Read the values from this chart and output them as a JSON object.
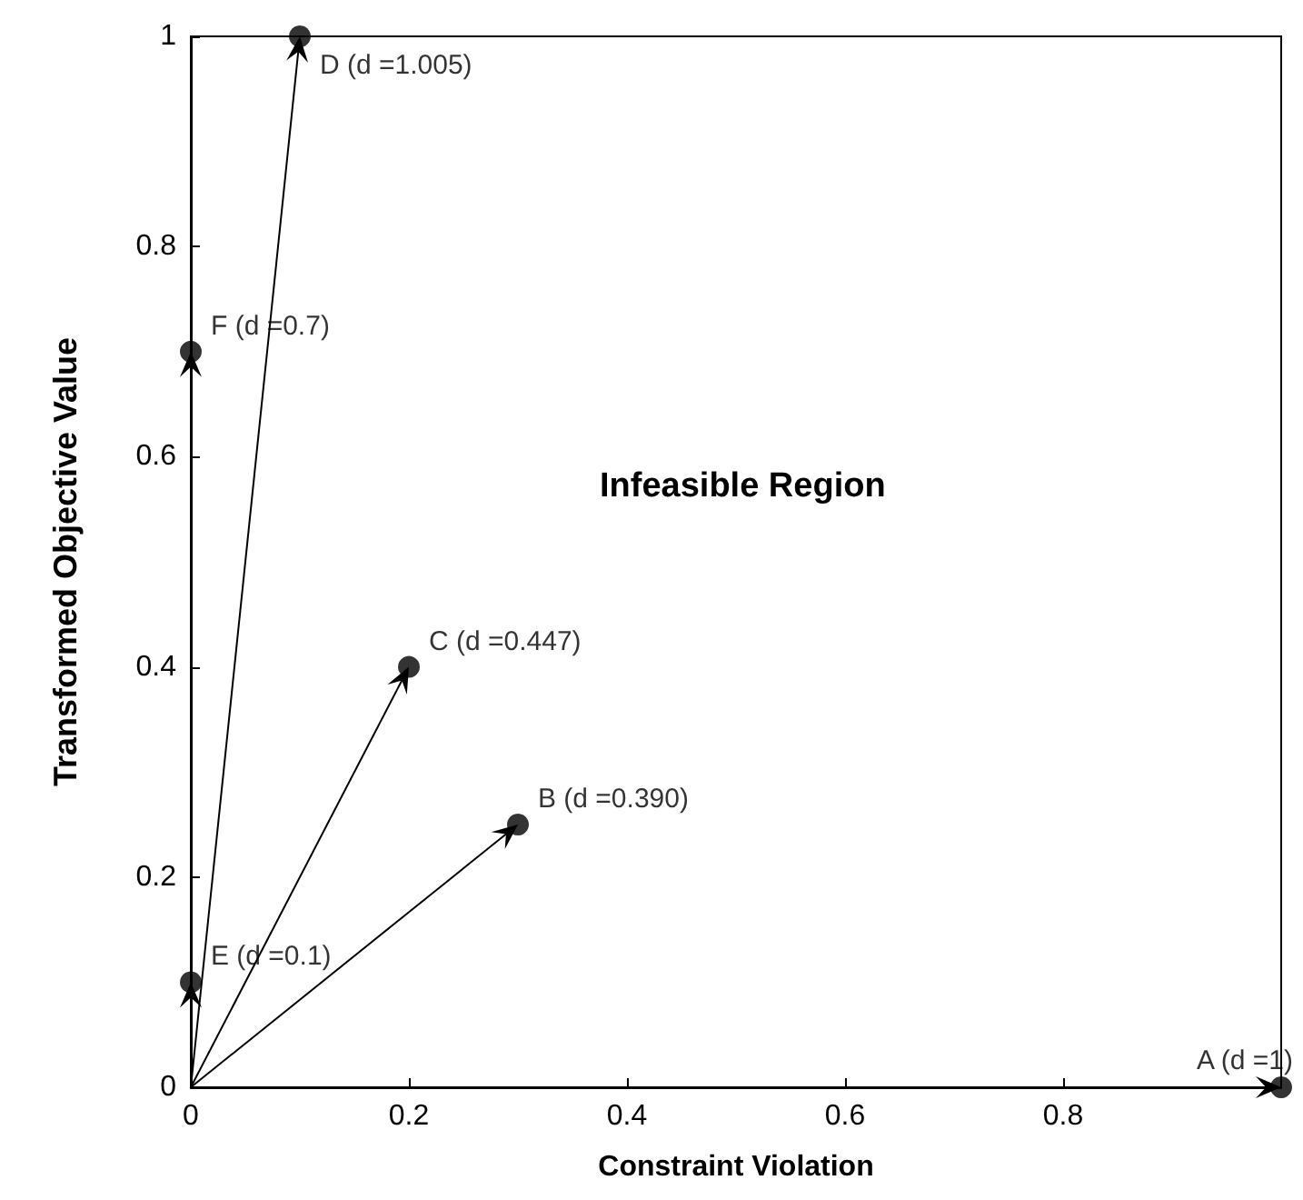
{
  "chart_data": {
    "type": "scatter",
    "xlabel": "Constraint Violation",
    "ylabel": "Transformed Objective Value",
    "x": [
      1,
      0.3,
      0.2,
      0.1,
      0,
      0
    ],
    "series": [
      {
        "color": "#000000",
        "values": [
          0,
          0.25,
          0.4,
          1,
          0.1,
          0.7
        ]
      }
    ],
    "xlim": [
      0,
      1
    ],
    "ylim": [
      0,
      1
    ],
    "xticks": [
      0,
      0.2,
      0.4,
      0.6,
      0.8
    ],
    "yticks": [
      0,
      0.2,
      0.4,
      0.6,
      0.8,
      1
    ],
    "marker": "circle",
    "grid": false,
    "annotations": [
      "Infeasible Region",
      {
        "text": "A (d =1)",
        "x": 1,
        "y": 0
      },
      {
        "text": "B (d =0.390)",
        "x": 0.3,
        "y": 0.25
      },
      {
        "text": "C (d =0.447)",
        "x": 0.2,
        "y": 0.4
      },
      {
        "text": "D (d =1.005)",
        "x": 0.1,
        "y": 1
      },
      {
        "text": "E (d =0.1)",
        "x": 0,
        "y": 0.1
      },
      {
        "text": "F (d =0.7)",
        "x": 0,
        "y": 0.7
      }
    ]
  }
}
